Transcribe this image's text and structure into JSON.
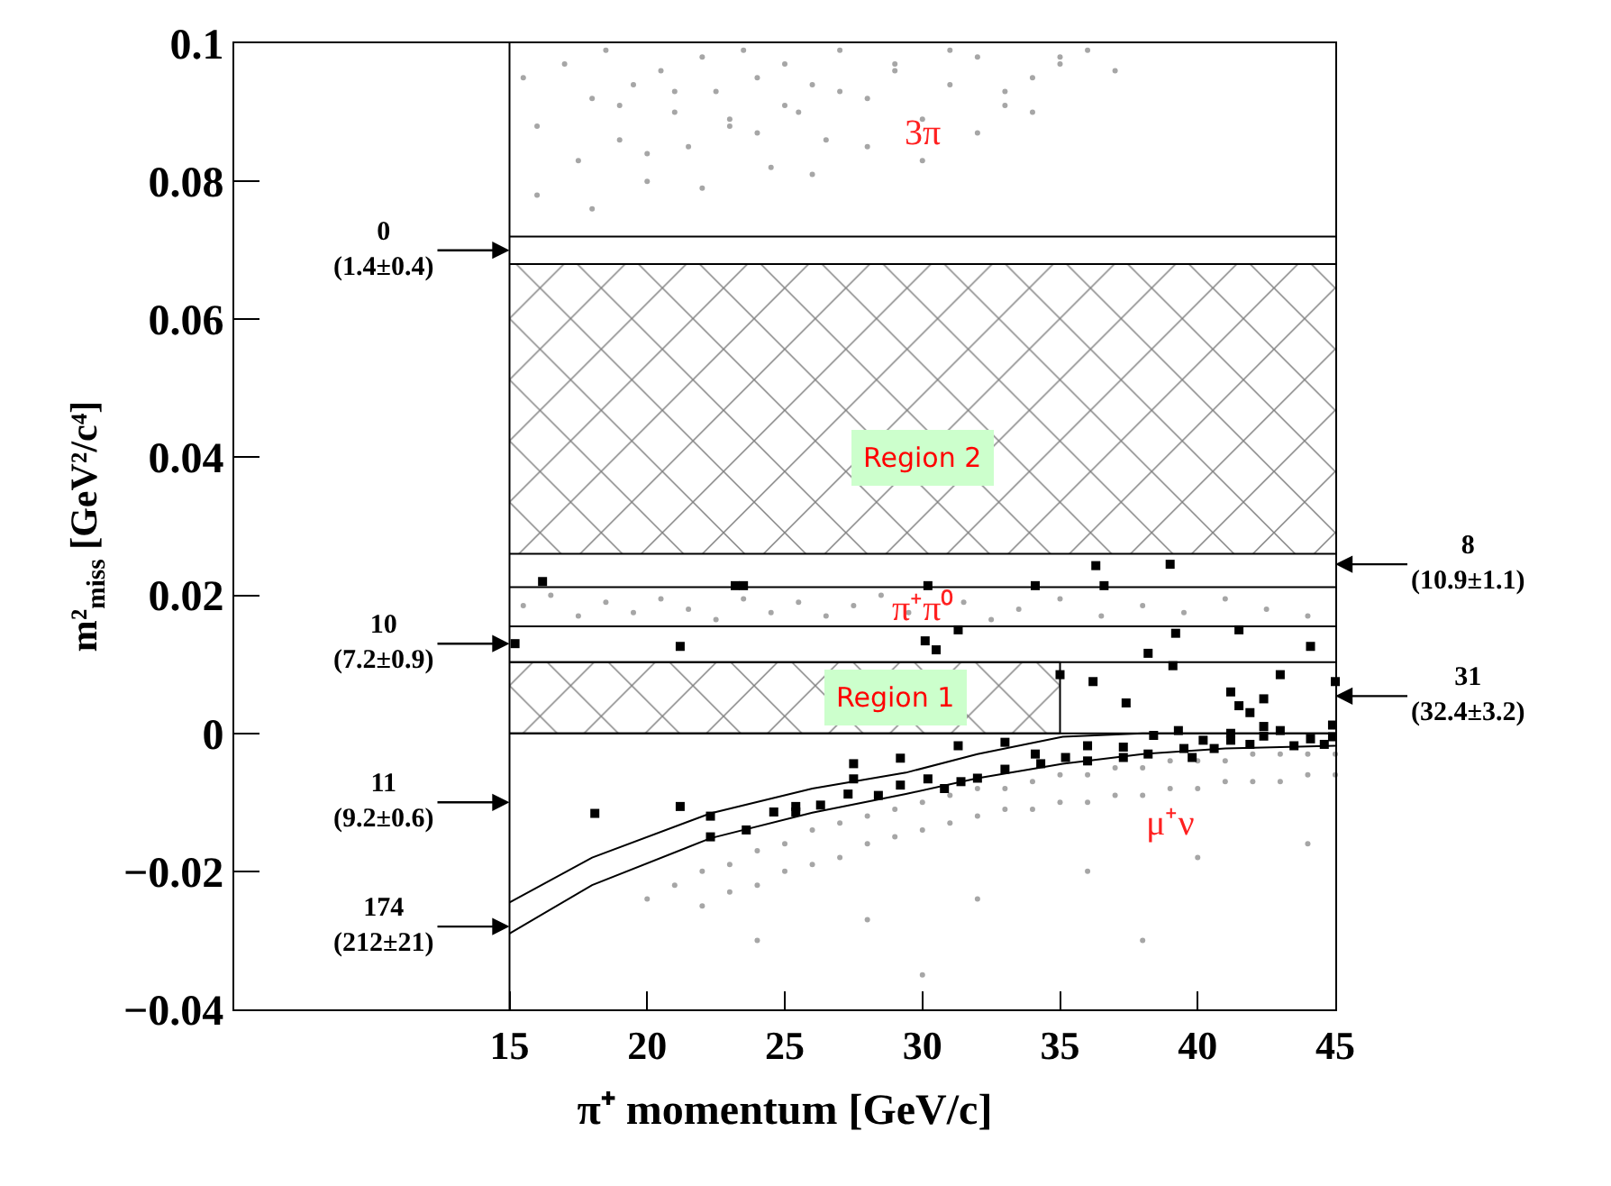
{
  "chart_data": {
    "type": "scatter",
    "xlabel": "π⁺ momentum [GeV/c]",
    "ylabel": "m²$_{miss}$ [GeV²/c⁴]",
    "xlim": [
      5,
      45
    ],
    "ylim": [
      -0.04,
      0.1
    ],
    "xticks": [
      15,
      20,
      25,
      30,
      35,
      40,
      45
    ],
    "yticks": [
      {
        "value": -0.04,
        "label": "−0.04"
      },
      {
        "value": -0.02,
        "label": "−0.02"
      },
      0,
      0.02,
      0.04,
      0.06,
      0.08,
      0.1
    ],
    "series": [
      {
        "marker": "circle",
        "color": "#a6a6a6",
        "x": [
          15.5,
          16,
          17,
          17.5,
          18,
          18.5,
          19,
          19.5,
          20,
          20.5,
          21,
          21.5,
          22,
          22.5,
          23,
          23.5,
          24,
          24.5,
          25,
          25.5,
          26,
          26.5,
          27,
          28,
          29,
          30,
          31,
          32,
          33,
          34,
          35,
          36,
          37,
          16,
          18,
          20,
          22,
          24,
          26,
          28,
          30,
          32,
          34,
          19,
          21,
          23,
          25,
          27,
          29,
          31,
          33,
          35
        ],
        "values": [
          0.095,
          0.088,
          0.097,
          0.083,
          0.092,
          0.099,
          0.086,
          0.094,
          0.08,
          0.096,
          0.09,
          0.085,
          0.098,
          0.093,
          0.088,
          0.099,
          0.095,
          0.082,
          0.097,
          0.09,
          0.094,
          0.086,
          0.099,
          0.092,
          0.096,
          0.089,
          0.094,
          0.098,
          0.091,
          0.095,
          0.097,
          0.099,
          0.096,
          0.078,
          0.076,
          0.084,
          0.079,
          0.087,
          0.081,
          0.085,
          0.083,
          0.087,
          0.09,
          0.091,
          0.093,
          0.089,
          0.091,
          0.093,
          0.097,
          0.099,
          0.093,
          0.098
        ]
      },
      {
        "marker": "circle",
        "color": "#a6a6a6",
        "x": [
          15.5,
          16.5,
          17.5,
          18.5,
          19.5,
          20.5,
          21.5,
          22.5,
          23.5,
          24.5,
          25.5,
          26.5,
          27.5,
          28.5,
          29.5,
          31.5,
          32.5,
          33.5,
          35,
          36.5,
          38,
          39.5,
          41,
          42.5,
          44
        ],
        "values": [
          0.0185,
          0.02,
          0.017,
          0.019,
          0.0175,
          0.0195,
          0.018,
          0.0165,
          0.0195,
          0.0175,
          0.019,
          0.017,
          0.0185,
          0.02,
          0.0175,
          0.019,
          0.0165,
          0.018,
          0.0195,
          0.017,
          0.0185,
          0.0175,
          0.0195,
          0.018,
          0.017
        ]
      },
      {
        "marker": "circle",
        "color": "#a6a6a6",
        "x": [
          20,
          21,
          22,
          22,
          23,
          23,
          24,
          24,
          25,
          25,
          26,
          26,
          27,
          27,
          28,
          28,
          29,
          29,
          30,
          30,
          31,
          31,
          32,
          32,
          33,
          33,
          34,
          34,
          35,
          35,
          36,
          36,
          37,
          37,
          38,
          38,
          39,
          39,
          40,
          40,
          41,
          41,
          42,
          42,
          43,
          43,
          44,
          44,
          45,
          45,
          24,
          28,
          32,
          36,
          40,
          44,
          30,
          38
        ],
        "values": [
          -0.024,
          -0.022,
          -0.02,
          -0.025,
          -0.019,
          -0.023,
          -0.017,
          -0.022,
          -0.016,
          -0.02,
          -0.014,
          -0.019,
          -0.013,
          -0.018,
          -0.012,
          -0.016,
          -0.011,
          -0.015,
          -0.01,
          -0.014,
          -0.009,
          -0.013,
          -0.008,
          -0.012,
          -0.008,
          -0.011,
          -0.007,
          -0.011,
          -0.006,
          -0.01,
          -0.006,
          -0.01,
          -0.005,
          -0.009,
          -0.005,
          -0.009,
          -0.004,
          -0.008,
          -0.004,
          -0.008,
          -0.004,
          -0.007,
          -0.003,
          -0.007,
          -0.003,
          -0.007,
          -0.003,
          -0.006,
          -0.003,
          -0.006,
          -0.03,
          -0.027,
          -0.024,
          -0.02,
          -0.018,
          -0.016,
          -0.035,
          -0.03
        ]
      },
      {
        "type": "line",
        "line_style": "solid",
        "color": "#000000",
        "x": [
          15,
          45
        ],
        "values": [
          0.026,
          0.026
        ]
      },
      {
        "type": "area",
        "color": "#000000",
        "x": [
          15,
          45
        ],
        "values": [
          0.068,
          0.068
        ]
      },
      {
        "type": "line",
        "line_style": "solid",
        "color": "#000000",
        "x": [
          15,
          35
        ],
        "values": [
          0,
          0
        ]
      },
      {
        "type": "area",
        "color": "#000000",
        "x": [
          15,
          35
        ],
        "values": [
          0.0103,
          0.0103
        ]
      },
      {
        "type": "line",
        "line_style": "solid",
        "color": "#000000",
        "x": [
          35,
          35
        ],
        "values": [
          0,
          0.0103
        ]
      },
      {
        "type": "line",
        "line_style": "solid",
        "color": "#000000",
        "x": [
          15,
          45
        ],
        "values": [
          0.072,
          0.072
        ]
      },
      {
        "type": "line",
        "line_style": "solid",
        "color": "#000000",
        "x": [
          15,
          45
        ],
        "values": [
          0.0212,
          0.0212
        ]
      },
      {
        "type": "line",
        "line_style": "solid",
        "color": "#000000",
        "x": [
          15,
          45
        ],
        "values": [
          0.0155,
          0.0155
        ]
      },
      {
        "type": "line",
        "line_style": "solid",
        "color": "#000000",
        "x": [
          15,
          45
        ],
        "values": [
          0.0103,
          0.0103
        ]
      },
      {
        "type": "line",
        "line_style": "solid",
        "color": "#000000",
        "x": [
          15,
          45
        ],
        "values": [
          0,
          0
        ]
      },
      {
        "type": "line",
        "line_style": "solid",
        "color": "#000000",
        "x": [
          15,
          15
        ],
        "values": [
          -0.04,
          0.1
        ]
      },
      {
        "type": "line",
        "line_style": "solid",
        "color": "#000000",
        "x": [
          15,
          18,
          22.3,
          26,
          29.4,
          32,
          35.1,
          38,
          41,
          45
        ],
        "values": [
          -0.0245,
          -0.018,
          -0.0116,
          -0.008,
          -0.0057,
          -0.003,
          -0.0005,
          0.0,
          0.0,
          0.0
        ]
      },
      {
        "type": "line",
        "line_style": "solid",
        "color": "#000000",
        "x": [
          15,
          18,
          22.3,
          26,
          29.4,
          32,
          35.1,
          38,
          41,
          45
        ],
        "values": [
          -0.029,
          -0.022,
          -0.0152,
          -0.0115,
          -0.0088,
          -0.0065,
          -0.0044,
          -0.003,
          -0.0022,
          -0.0018
        ]
      },
      {
        "marker": "square",
        "color": "#000000",
        "x": [
          15.2,
          16.2,
          21.2,
          23.2,
          23.5,
          30.2,
          34.1,
          36.3,
          36.6,
          39.0,
          30.1,
          30.5,
          31.3,
          38.2,
          39.1,
          39.2,
          41.5,
          44.1,
          35.0,
          36.2,
          37.4,
          41.2,
          41.5,
          41.9,
          42.4,
          43.0,
          45.0,
          44.9,
          42.4,
          18.1,
          21.2,
          22.3,
          22.3,
          23.6,
          24.6,
          25.4,
          25.4,
          26.3,
          27.3,
          27.5,
          27.5,
          28.4,
          29.2,
          29.2,
          30.2,
          30.8,
          31.3,
          31.4,
          32.0,
          33.0,
          33.0,
          34.1,
          34.3,
          35.2,
          36.0,
          36.0,
          37.3,
          37.3,
          38.4,
          38.2,
          39.3,
          39.5,
          40.2,
          40.6,
          41.2,
          41.9,
          42.4,
          43.0,
          43.5,
          44.1,
          44.6,
          44.9,
          39.8,
          41.2
        ],
        "values": [
          0.013,
          0.022,
          0.0126,
          0.0214,
          0.0214,
          0.0214,
          0.0214,
          0.0243,
          0.0214,
          0.0245,
          0.0134,
          0.0121,
          0.015,
          0.0116,
          0.0098,
          0.0145,
          0.015,
          0.0126,
          0.0085,
          0.0075,
          0.0044,
          0.006,
          0.004,
          0.003,
          0.005,
          0.0085,
          0.0075,
          0.0012,
          0.001,
          -0.0116,
          -0.0106,
          -0.012,
          -0.015,
          -0.014,
          -0.0114,
          -0.0114,
          -0.0106,
          -0.0104,
          -0.0088,
          -0.0044,
          -0.0066,
          -0.009,
          -0.0036,
          -0.0075,
          -0.0066,
          -0.008,
          -0.0018,
          -0.007,
          -0.0065,
          -0.0013,
          -0.0052,
          -0.003,
          -0.0044,
          -0.0035,
          -0.0018,
          -0.004,
          -0.002,
          -0.0035,
          -0.0003,
          -0.003,
          0.0004,
          -0.0022,
          -0.001,
          -0.0022,
          -0.001,
          -0.0016,
          -0.0004,
          0.0004,
          -0.0018,
          -0.0008,
          -0.0016,
          -0.0005,
          -0.0035,
          0.0
        ]
      }
    ],
    "annotations": [
      "0\n(1.4±0.4)",
      "10\n(7.2±0.9)",
      "11\n(9.2±0.6)",
      "174\n(212±21)",
      "8\n(10.9±1.1)",
      "31\n(32.4±3.2)",
      "3π",
      "π⁺π⁰",
      "μ⁺ν",
      "Region 2",
      "Region 1"
    ]
  }
}
